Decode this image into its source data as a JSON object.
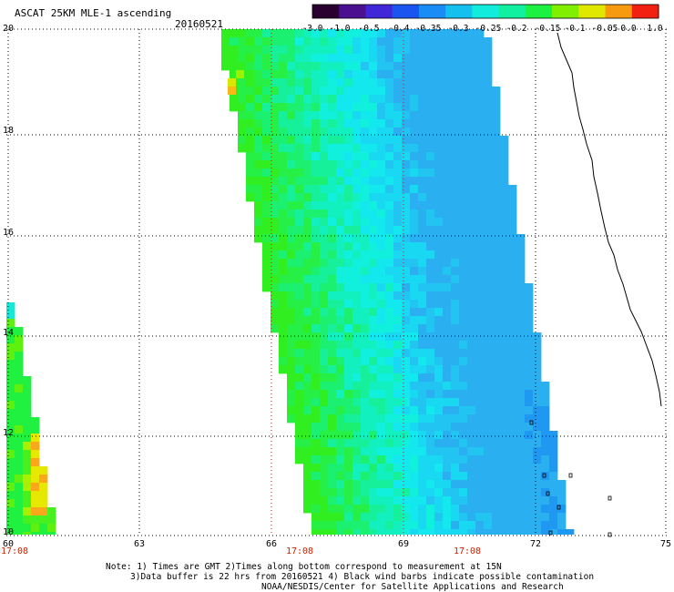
{
  "header": {
    "title": "ASCAT 25KM MLE-1 ascending",
    "date": "20160521"
  },
  "colorbar": {
    "labels": [
      "-3.0",
      "-1.0",
      "-0.5",
      "-0.4",
      "-0.35",
      "-0.3",
      "-0.25",
      "-0.2",
      "-0.15",
      "-0.1",
      "-0.05",
      "0.0",
      "1.0"
    ],
    "colors": [
      "#2a0030",
      "#4a1090",
      "#4028d8",
      "#1a55f0",
      "#1a8cf5",
      "#16c0ee",
      "#12ecdc",
      "#10f0a0",
      "#1cf040",
      "#80f000",
      "#e0e800",
      "#f89a10",
      "#f22010"
    ]
  },
  "axes": {
    "y_labels": [
      "20",
      "18",
      "16",
      "14",
      "12",
      "10"
    ],
    "x_labels": [
      "60",
      "63",
      "66",
      "69",
      "72",
      "75"
    ],
    "time_labels": [
      "17:08",
      "17:08",
      "17:08"
    ]
  },
  "notes": {
    "line1": "Note: 1) Times are GMT 2)Times along bottom correspond to measurement at 15N",
    "line2": "3)Data buffer is 22 hrs from 20160521 4) Black wind barbs indicate possible contamination",
    "line3": "NOAA/NESDIS/Center for Satellite Applications and Research"
  }
}
